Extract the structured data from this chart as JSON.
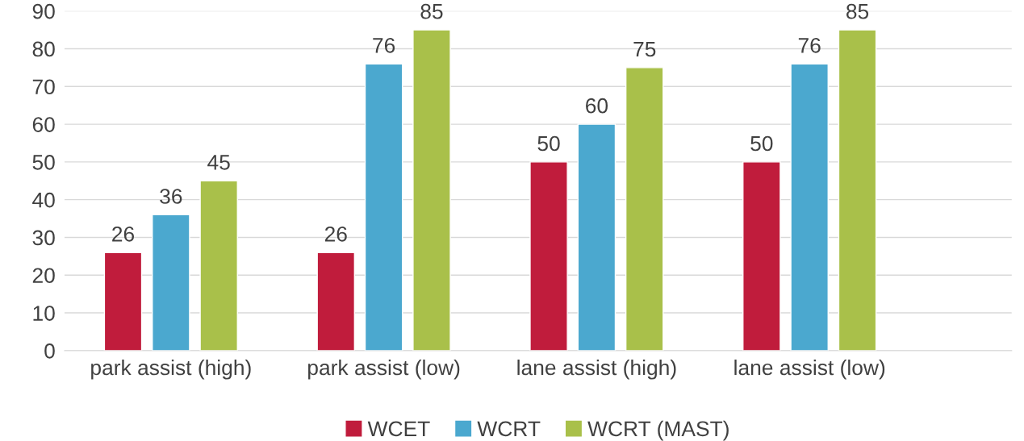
{
  "chart_data": {
    "type": "bar",
    "categories": [
      "park assist (high)",
      "park assist (low)",
      "lane assist (high)",
      "lane assist (low)"
    ],
    "series": [
      {
        "name": "WCET",
        "color": "#c01c3c",
        "values": [
          26,
          26,
          50,
          50
        ]
      },
      {
        "name": "WCRT",
        "color": "#4ba8cf",
        "values": [
          36,
          76,
          60,
          76
        ]
      },
      {
        "name": "WCRT (MAST)",
        "color": "#a9c04a",
        "values": [
          45,
          85,
          75,
          85
        ]
      }
    ],
    "ylim": [
      0,
      90
    ],
    "yticks": [
      0,
      10,
      20,
      30,
      40,
      50,
      60,
      70,
      80,
      90
    ],
    "grid": "y",
    "legend": "bottom",
    "data_labels": true
  }
}
